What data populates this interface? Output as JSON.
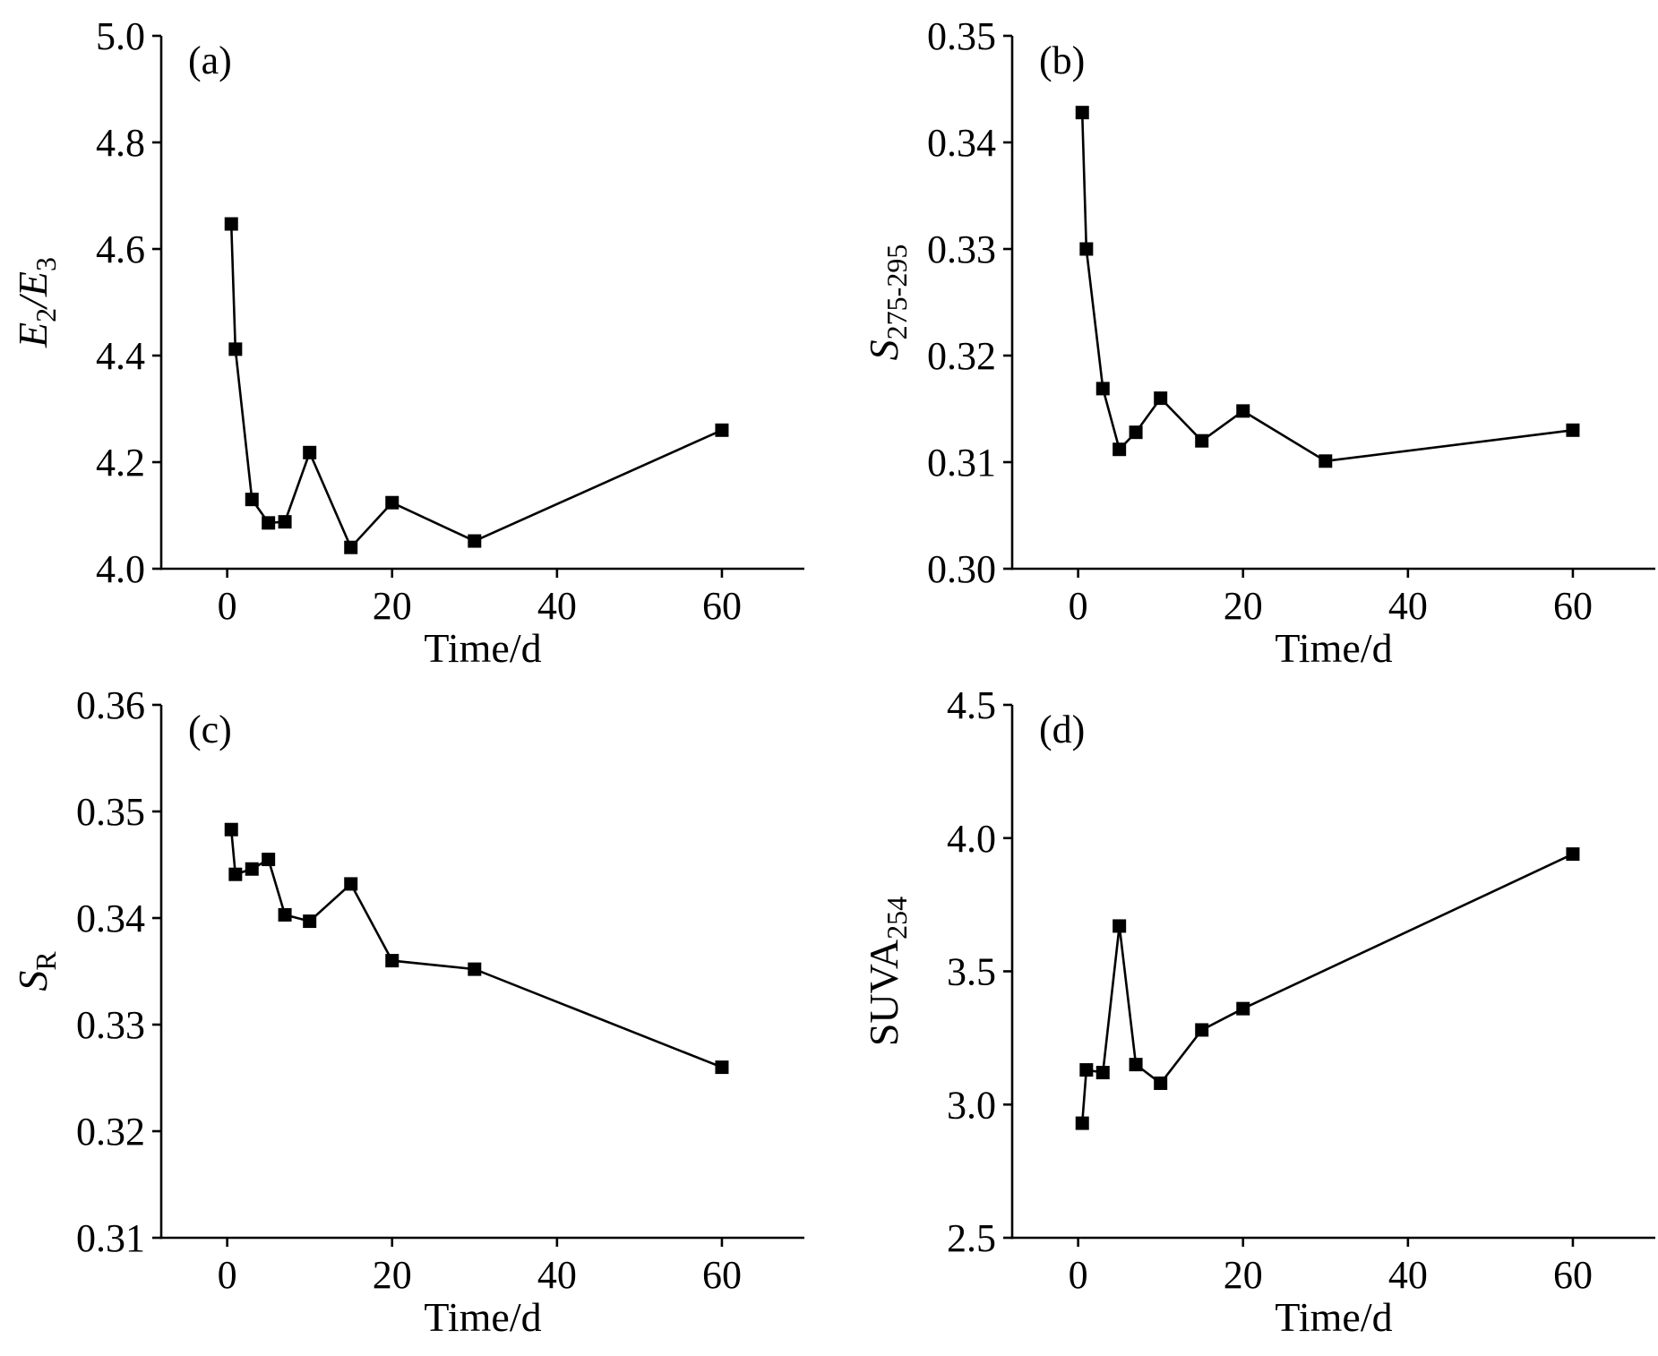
{
  "chart_data": [
    {
      "type": "line",
      "panel_label": "(a)",
      "xlabel": "Time/d",
      "ylabel": {
        "main": "E",
        "sub1": "2",
        "mid": "/E",
        "sub2": "3"
      },
      "xlim": [
        -8,
        70
      ],
      "ylim": [
        4.0,
        5.0
      ],
      "xticks": [
        "0",
        "20",
        "40",
        "60"
      ],
      "xtick_values": [
        0,
        20,
        40,
        60
      ],
      "yticks": [
        "4.0",
        "4.2",
        "4.4",
        "4.6",
        "4.8",
        "5.0"
      ],
      "ytick_values": [
        4.0,
        4.2,
        4.4,
        4.6,
        4.8,
        5.0
      ],
      "x": [
        0.5,
        1,
        3,
        5,
        7,
        10,
        15,
        20,
        30,
        60
      ],
      "series": [
        {
          "values": [
            4.647,
            4.412,
            4.13,
            4.086,
            4.088,
            4.218,
            4.04,
            4.124,
            4.052,
            4.26
          ]
        }
      ]
    },
    {
      "type": "line",
      "panel_label": "(b)",
      "xlabel": "Time/d",
      "ylabel": {
        "main": "S",
        "sub1": "275-295"
      },
      "xlim": [
        -8,
        70
      ],
      "ylim": [
        0.3,
        0.35
      ],
      "xticks": [
        "0",
        "20",
        "40",
        "60"
      ],
      "xtick_values": [
        0,
        20,
        40,
        60
      ],
      "yticks": [
        "0.30",
        "0.31",
        "0.32",
        "0.33",
        "0.34",
        "0.35"
      ],
      "ytick_values": [
        0.3,
        0.31,
        0.32,
        0.33,
        0.34,
        0.35
      ],
      "x": [
        0.5,
        1,
        3,
        5,
        7,
        10,
        15,
        20,
        30,
        60
      ],
      "series": [
        {
          "values": [
            0.3428,
            0.33,
            0.3169,
            0.3112,
            0.3128,
            0.316,
            0.312,
            0.3148,
            0.3101,
            0.313
          ]
        }
      ]
    },
    {
      "type": "line",
      "panel_label": "(c)",
      "xlabel": "Time/d",
      "ylabel": {
        "main": "S",
        "sub1": "R"
      },
      "xlim": [
        -8,
        70
      ],
      "ylim": [
        0.31,
        0.36
      ],
      "xticks": [
        "0",
        "20",
        "40",
        "60"
      ],
      "xtick_values": [
        0,
        20,
        40,
        60
      ],
      "yticks": [
        "0.31",
        "0.32",
        "0.33",
        "0.34",
        "0.35",
        "0.36"
      ],
      "ytick_values": [
        0.31,
        0.32,
        0.33,
        0.34,
        0.35,
        0.36
      ],
      "x": [
        0.5,
        1,
        3,
        5,
        7,
        10,
        15,
        20,
        30,
        60
      ],
      "series": [
        {
          "values": [
            0.3483,
            0.3441,
            0.3446,
            0.3455,
            0.3403,
            0.3397,
            0.3432,
            0.336,
            0.3352,
            0.326
          ]
        }
      ]
    },
    {
      "type": "line",
      "panel_label": "(d)",
      "xlabel": "Time/d",
      "ylabel": {
        "main": "SUVA",
        "sub1": "254"
      },
      "xlim": [
        -8,
        70
      ],
      "ylim": [
        2.5,
        4.5
      ],
      "xticks": [
        "0",
        "20",
        "40",
        "60"
      ],
      "xtick_values": [
        0,
        20,
        40,
        60
      ],
      "yticks": [
        "2.5",
        "3.0",
        "3.5",
        "4.0",
        "4.5"
      ],
      "ytick_values": [
        2.5,
        3.0,
        3.5,
        4.0,
        4.5
      ],
      "x": [
        0.5,
        1,
        3,
        5,
        7,
        10,
        15,
        20,
        60
      ],
      "series": [
        {
          "values": [
            2.93,
            3.13,
            3.12,
            3.67,
            3.15,
            3.08,
            3.28,
            3.36,
            3.94
          ]
        }
      ]
    }
  ]
}
